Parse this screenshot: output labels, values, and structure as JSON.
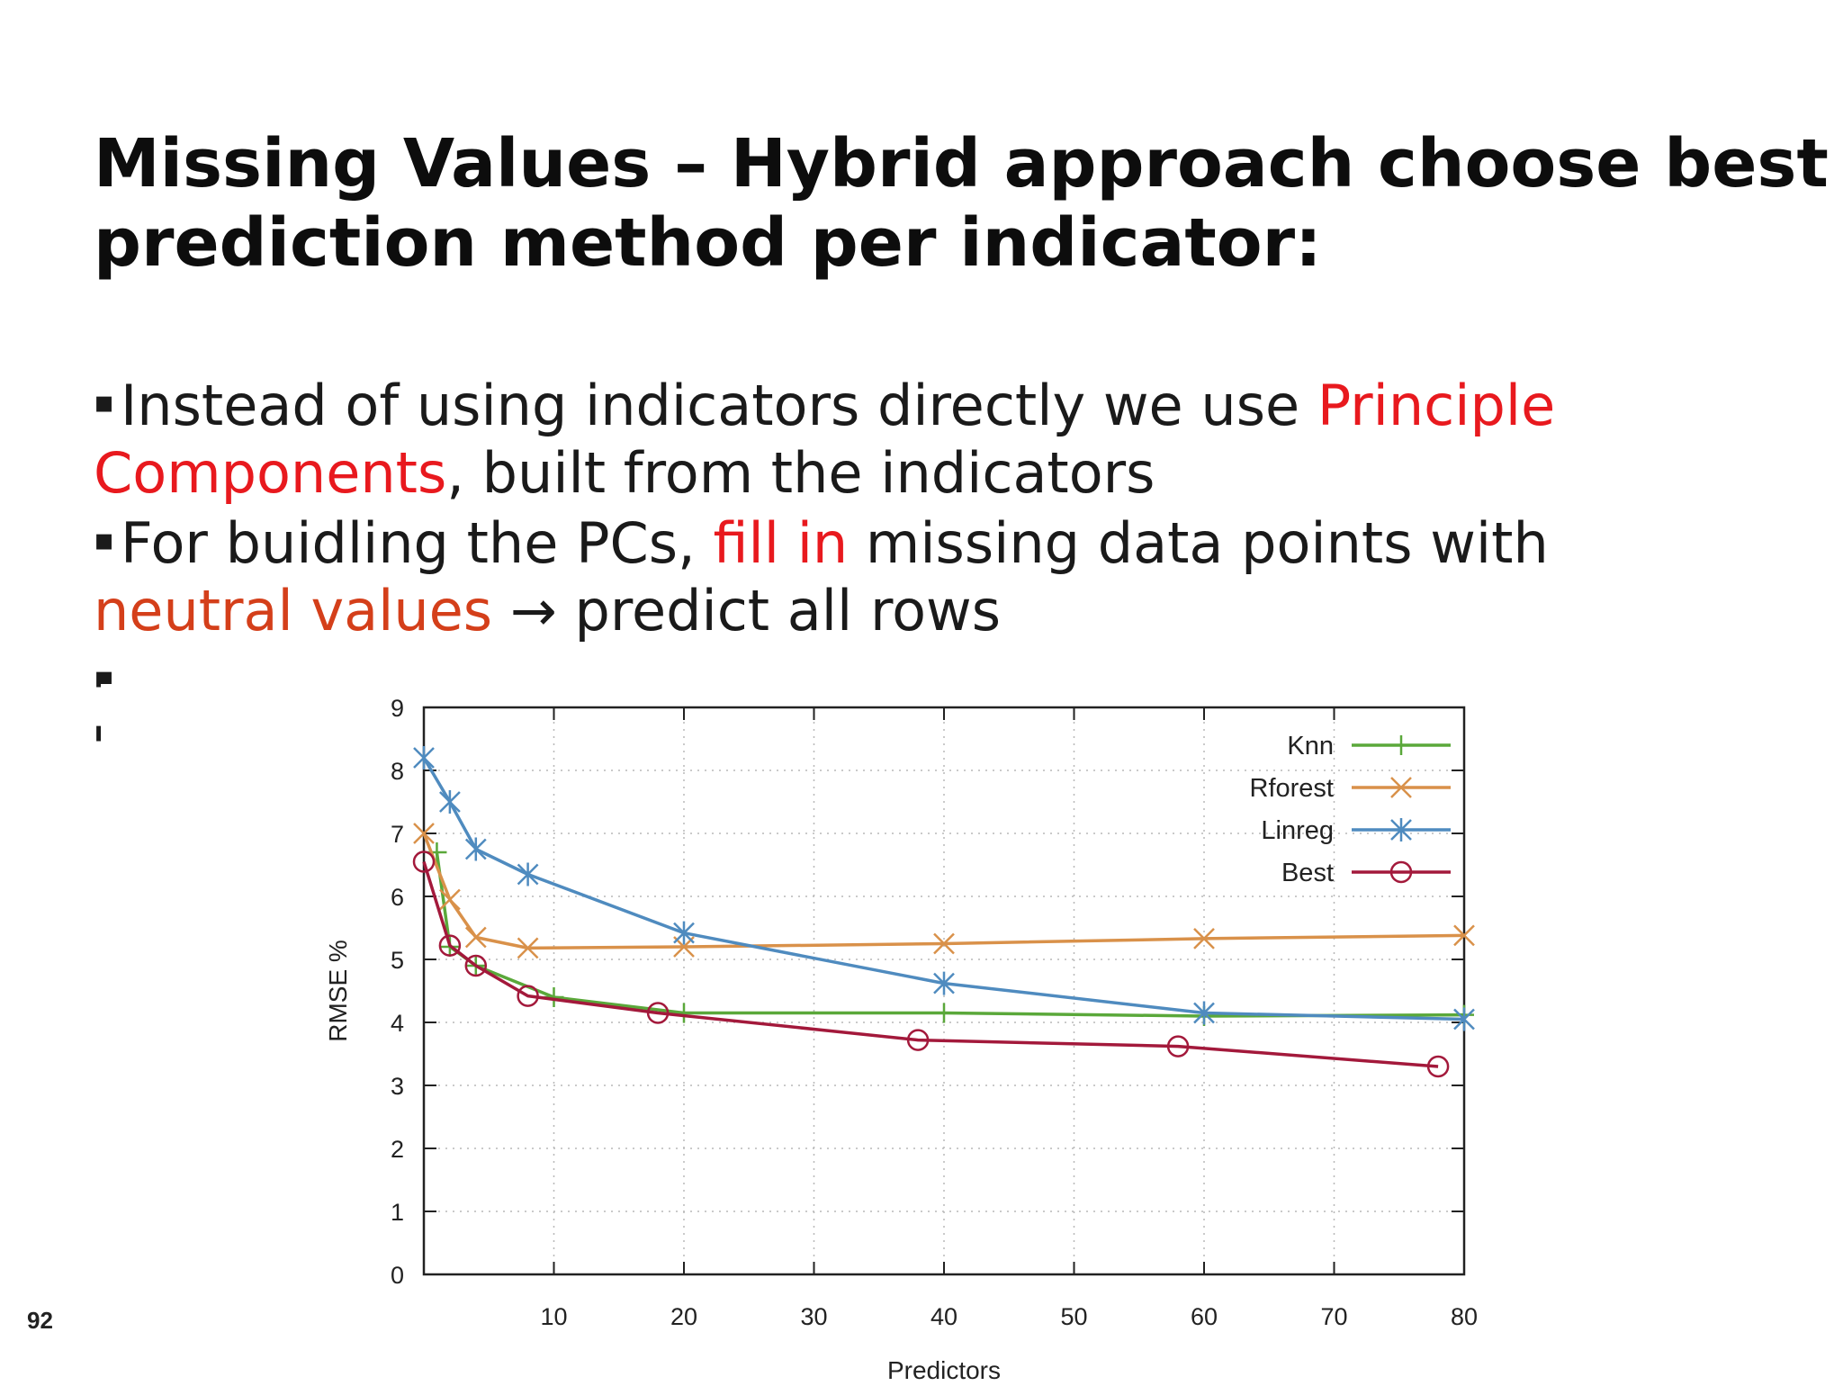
{
  "slide": {
    "title_line1": "Missing Values – Hybrid approach choose best",
    "title_line2": "prediction method per indicator:",
    "bullet_marker": "▪",
    "bullet1": {
      "part1": "Instead of using indicators directly we use ",
      "highlight1": "Principle",
      "highlight2": "Components",
      "part2": ", built from the indicators"
    },
    "bullet2": {
      "part1": "For buidling the PCs, ",
      "highlight1": "fill in",
      "part2": " missing data points with",
      "highlight2": "neutral values",
      "part3": " → predict all rows"
    },
    "page_number": "92"
  },
  "colors": {
    "highlight_red": "#e8191e",
    "highlight_orange": "#d43f1a",
    "knn": "#5aa83a",
    "rforest": "#d9914a",
    "linreg": "#4f8bbf",
    "best": "#a3193b"
  },
  "chart_data": {
    "type": "line",
    "title": "",
    "xlabel": "Predictors",
    "ylabel": "RMSE %",
    "xlim": [
      0,
      80
    ],
    "ylim": [
      0,
      9
    ],
    "x_ticks": [
      10,
      20,
      30,
      40,
      50,
      60,
      70,
      80
    ],
    "y_ticks": [
      0,
      1,
      2,
      3,
      4,
      5,
      6,
      7,
      8,
      9
    ],
    "grid": true,
    "legend_position": "top-right",
    "series": [
      {
        "name": "Knn",
        "marker": "plus",
        "color": "#5aa83a",
        "x": [
          1,
          2,
          4,
          10,
          20,
          40,
          60,
          80
        ],
        "y": [
          6.7,
          5.2,
          4.9,
          4.4,
          4.15,
          4.15,
          4.1,
          4.12
        ]
      },
      {
        "name": "Rforest",
        "marker": "cross",
        "color": "#d9914a",
        "x": [
          0,
          2,
          4,
          8,
          20,
          40,
          60,
          80
        ],
        "y": [
          7.0,
          5.95,
          5.35,
          5.18,
          5.2,
          5.25,
          5.33,
          5.38
        ]
      },
      {
        "name": "Linreg",
        "marker": "star",
        "color": "#4f8bbf",
        "x": [
          0,
          2,
          4,
          8,
          20,
          40,
          60,
          80
        ],
        "y": [
          8.2,
          7.5,
          6.75,
          6.35,
          5.42,
          4.62,
          4.15,
          4.05
        ]
      },
      {
        "name": "Best",
        "marker": "circle",
        "color": "#a3193b",
        "x": [
          0,
          2,
          4,
          8,
          18,
          38,
          58,
          78
        ],
        "y": [
          6.55,
          5.22,
          4.9,
          4.42,
          4.15,
          3.72,
          3.62,
          3.3
        ]
      }
    ]
  }
}
